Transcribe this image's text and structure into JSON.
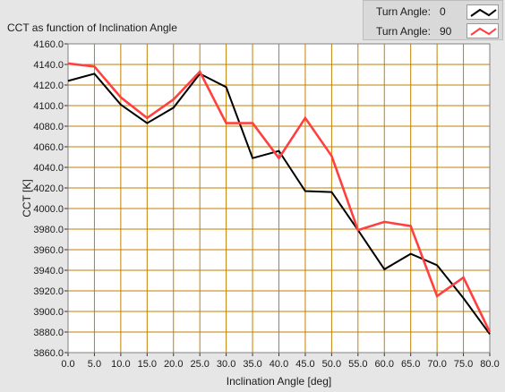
{
  "chart_data": {
    "type": "line",
    "title": "CCT as function of Inclination Angle",
    "xlabel": "Inclination Angle [deg]",
    "ylabel": "CCT [K]",
    "xlim": [
      0,
      80
    ],
    "ylim": [
      3860,
      4160
    ],
    "grid": true,
    "legend_placement": "top-right",
    "legend_label": "Turn Angle:",
    "x_ticks": [
      "0.0",
      "5.0",
      "10.0",
      "15.0",
      "20.0",
      "25.0",
      "30.0",
      "35.0",
      "40.0",
      "45.0",
      "50.0",
      "55.0",
      "60.0",
      "65.0",
      "70.0",
      "75.0",
      "80.0"
    ],
    "y_ticks": [
      "3860.0",
      "3880.0",
      "3900.0",
      "3920.0",
      "3940.0",
      "3960.0",
      "3980.0",
      "4000.0",
      "4020.0",
      "4040.0",
      "4060.0",
      "4080.0",
      "4100.0",
      "4120.0",
      "4140.0",
      "4160.0"
    ],
    "x": [
      0,
      5,
      10,
      15,
      20,
      25,
      30,
      35,
      40,
      45,
      50,
      55,
      60,
      65,
      70,
      75,
      80
    ],
    "series": [
      {
        "name": "0",
        "color": "#000000",
        "values": [
          4124,
          4131,
          4101,
          4083,
          4098,
          4131,
          4118,
          4049,
          4056,
          4017,
          4016,
          3979,
          3941,
          3956,
          3945,
          3913,
          3878
        ]
      },
      {
        "name": "90",
        "color": "#ff4040",
        "values": [
          4141,
          4138,
          4108,
          4088,
          4106,
          4133,
          4083,
          4083,
          4049,
          4088,
          4051,
          3979,
          3987,
          3983,
          3915,
          3933,
          3880
        ]
      }
    ],
    "plot_background": "#ffffff",
    "grid_color": "#c08000"
  }
}
